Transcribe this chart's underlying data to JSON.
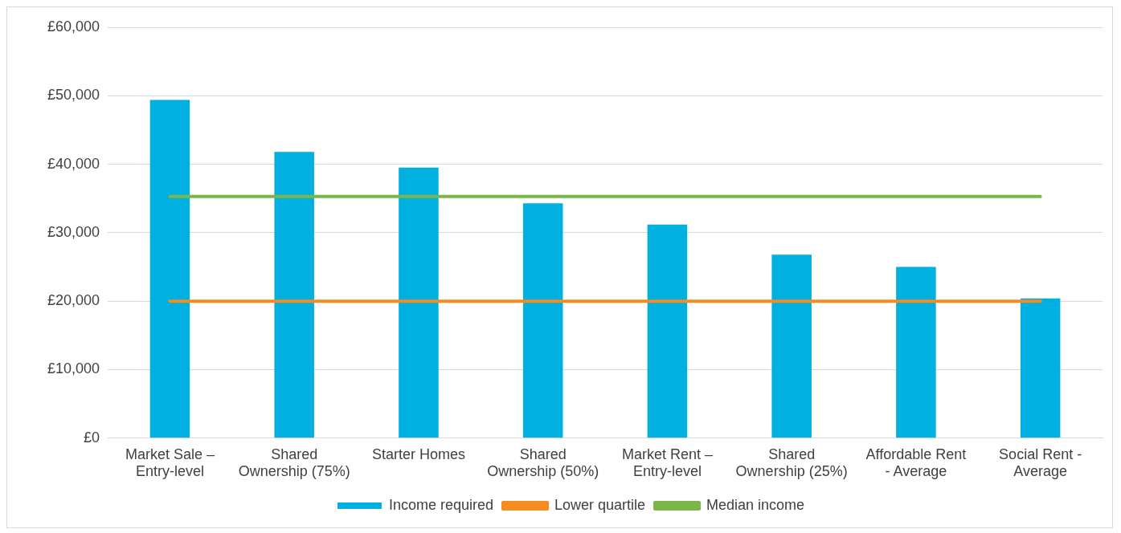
{
  "chart_data": {
    "type": "bar",
    "categories": [
      "Market Sale – Entry-level",
      "Shared Ownership (75%)",
      "Starter Homes",
      "Shared Ownership (50%)",
      "Market Rent – Entry-level",
      "Shared Ownership (25%)",
      "Affordable Rent - Average",
      "Social Rent - Average"
    ],
    "series": [
      {
        "name": "Income required",
        "color": "#00b0e0",
        "values": [
          49400,
          41800,
          39500,
          34300,
          31200,
          26800,
          25000,
          20400
        ]
      },
      {
        "name": "Lower quartile",
        "type": "line",
        "color": "#f68b1f",
        "values": [
          20000,
          20000,
          20000,
          20000,
          20000,
          20000,
          20000,
          20000
        ]
      },
      {
        "name": "Median income",
        "type": "line",
        "color": "#7ab648",
        "values": [
          35300,
          35300,
          35300,
          35300,
          35300,
          35300,
          35300,
          35300
        ]
      }
    ],
    "ylim": [
      0,
      60000
    ],
    "yticks": [
      {
        "value": 0,
        "label": "£0"
      },
      {
        "value": 10000,
        "label": "£10,000"
      },
      {
        "value": 20000,
        "label": "£20,000"
      },
      {
        "value": 30000,
        "label": "£30,000"
      },
      {
        "value": 40000,
        "label": "£40,000"
      },
      {
        "value": 50000,
        "label": "£50,000"
      },
      {
        "value": 60000,
        "label": "£60,000"
      }
    ],
    "grid": "y",
    "legend": "bottom",
    "marker": "none"
  }
}
